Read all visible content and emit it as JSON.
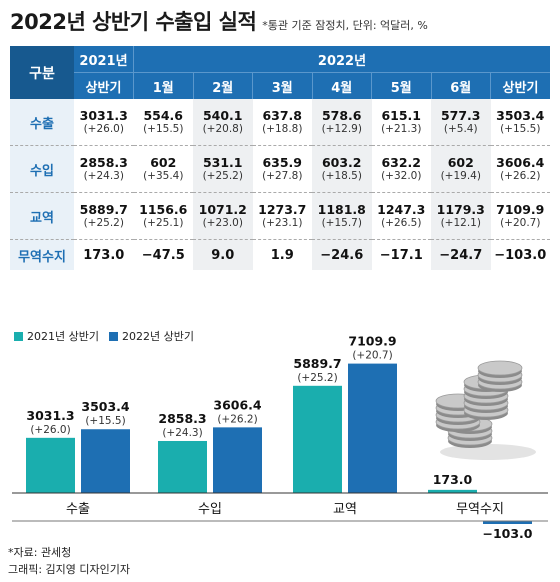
{
  "header": {
    "title": "2022년 상반기 수출입 실적",
    "subtitle": "*통관 기준 잠정치, 단위: 억달러, %"
  },
  "table": {
    "gubun": "구분",
    "year2021": "2021년",
    "year2022": "2022년",
    "columns": [
      "상반기",
      "1월",
      "2월",
      "3월",
      "4월",
      "5월",
      "6월",
      "상반기"
    ],
    "rows": [
      {
        "label": "수출",
        "values": [
          "3031.3",
          "554.6",
          "540.1",
          "637.8",
          "578.6",
          "615.1",
          "577.3",
          "3503.4"
        ],
        "changes": [
          "(+26.0)",
          "(+15.5)",
          "(+20.8)",
          "(+18.8)",
          "(+12.9)",
          "(+21.3)",
          "(+5.4)",
          "(+15.5)"
        ]
      },
      {
        "label": "수입",
        "values": [
          "2858.3",
          "602",
          "531.1",
          "635.9",
          "603.2",
          "632.2",
          "602",
          "3606.4"
        ],
        "changes": [
          "(+24.3)",
          "(+35.4)",
          "(+25.2)",
          "(+27.8)",
          "(+18.5)",
          "(+32.0)",
          "(+19.4)",
          "(+26.2)"
        ]
      },
      {
        "label": "교역",
        "values": [
          "5889.7",
          "1156.6",
          "1071.2",
          "1273.7",
          "1181.8",
          "1247.3",
          "1179.3",
          "7109.9"
        ],
        "changes": [
          "(+25.2)",
          "(+25.1)",
          "(+23.0)",
          "(+23.1)",
          "(+15.7)",
          "(+26.5)",
          "(+12.1)",
          "(+20.7)"
        ]
      },
      {
        "label": "무역수지",
        "values": [
          "173.0",
          "−47.5",
          "9.0",
          "1.9",
          "−24.6",
          "−17.1",
          "−24.7",
          "−103.0"
        ],
        "changes": []
      }
    ]
  },
  "chart_data": {
    "type": "bar",
    "categories": [
      "수출",
      "수입",
      "교역",
      "무역수지"
    ],
    "series": [
      {
        "name": "2021년 상반기",
        "color": "#1aaeae",
        "values": [
          3031.3,
          2858.3,
          5889.7,
          173.0
        ],
        "labels": [
          "3031.3",
          "2858.3",
          "5889.7",
          "173.0"
        ],
        "changes": [
          "(+26.0)",
          "(+24.3)",
          "(+25.2)",
          ""
        ]
      },
      {
        "name": "2022년 상반기",
        "color": "#1e6fb3",
        "values": [
          3503.4,
          3606.4,
          7109.9,
          -103.0
        ],
        "labels": [
          "3503.4",
          "3606.4",
          "7109.9",
          "−103.0"
        ],
        "changes": [
          "(+15.5)",
          "(+26.2)",
          "(+20.7)",
          ""
        ]
      }
    ],
    "ylim": [
      -103,
      7300
    ]
  },
  "footer": {
    "source": "*자료: 관세청",
    "credit": "그래픽: 김지영 디자인기자"
  }
}
